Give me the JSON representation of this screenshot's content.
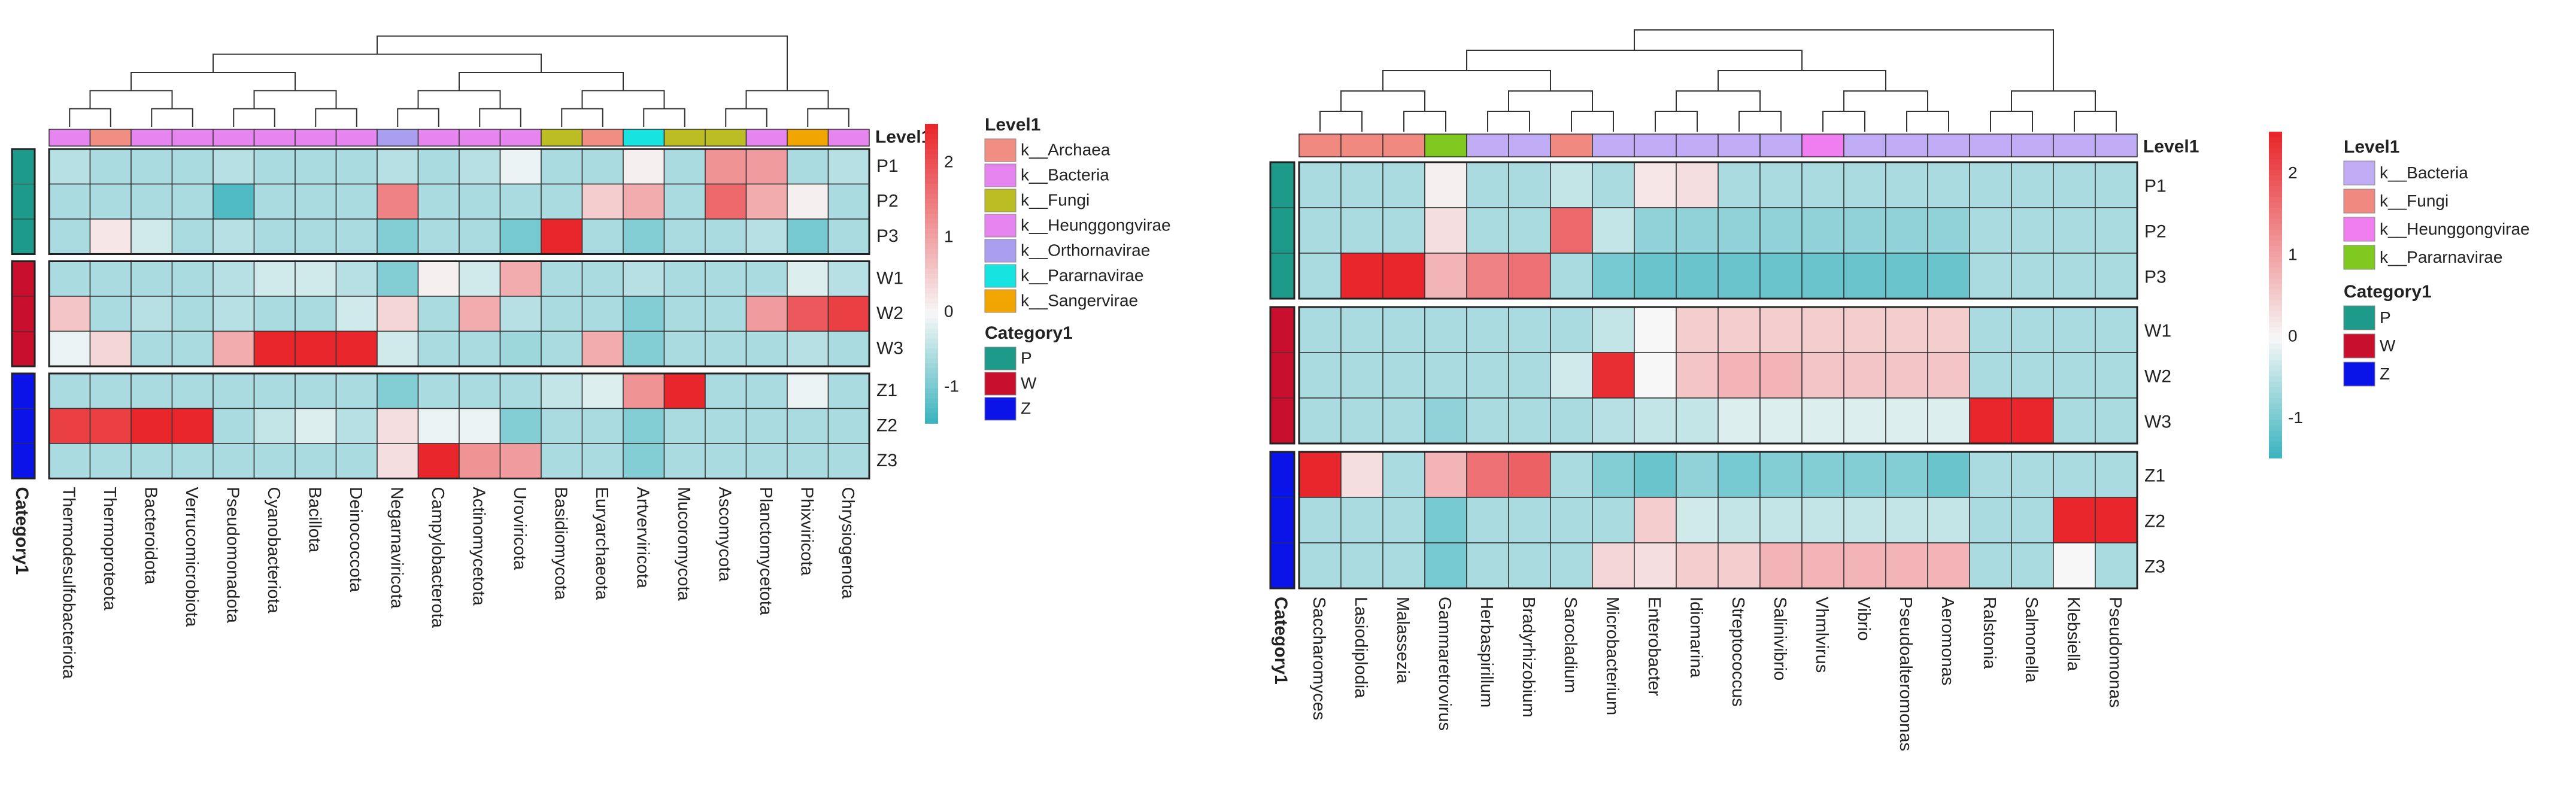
{
  "colors": {
    "high": "#e8262b",
    "mid": "#f7f7f7",
    "low": "#36b2bd",
    "group_P": "#1d9a8a",
    "group_W": "#c8102e",
    "group_Z": "#0a14e8",
    "k_Archaea": "#f08e82",
    "k_Bacteria": "#e684f0",
    "k_Fungi": "#bcbd22",
    "k_Heunggongvirae": "#e684f0",
    "k_Orthornavirae": "#aa9ef0",
    "k_Pararnavirae": "#17e3e0",
    "k_Sangervirae": "#f0a500",
    "k2_Bacteria": "#c0acf4",
    "k2_Fungi": "#f08a80",
    "k2_Heunggongvirae": "#f07ef0",
    "k2_Pararnavirae": "#7ec820"
  },
  "chart_data": [
    {
      "type": "heatmap",
      "title": "",
      "color_range": [
        -1.5,
        2.5
      ],
      "colorbar_ticks": [
        "2",
        "1",
        "0",
        "-1"
      ],
      "colorbar_tick_values": [
        2,
        1,
        0,
        -1
      ],
      "annotation_row_label": "Level1",
      "category_label": "Category1",
      "columns": [
        "Thermodesulfobacteriota",
        "Thermoproteota",
        "Bacteroidota",
        "Verrucomicrobiota",
        "Pseudomonadota",
        "Cyanobacteriota",
        "Bacillota",
        "Deinococcota",
        "Negarnaviricota",
        "Campylobacterota",
        "Actinomycetota",
        "Uroviricota",
        "Basidiomycota",
        "Euryarchaeota",
        "Artverviricota",
        "Mucoromycota",
        "Ascomycota",
        "Planctomycetota",
        "Phixviricota",
        "Chrysiogenota"
      ],
      "column_level1": [
        "k_Bacteria",
        "k_Archaea",
        "k_Bacteria",
        "k_Bacteria",
        "k_Bacteria",
        "k_Bacteria",
        "k_Bacteria",
        "k_Bacteria",
        "k_Orthornavirae",
        "k_Bacteria",
        "k_Bacteria",
        "k_Heunggongvirae",
        "k_Fungi",
        "k_Archaea",
        "k_Pararnavirae",
        "k_Fungi",
        "k_Fungi",
        "k_Bacteria",
        "k_Sangervirae",
        "k_Bacteria"
      ],
      "rows": [
        "P1",
        "P2",
        "P3",
        "W1",
        "W2",
        "W3",
        "Z1",
        "Z2",
        "Z3"
      ],
      "row_groups": [
        "P",
        "P",
        "P",
        "W",
        "W",
        "W",
        "Z",
        "Z",
        "Z"
      ],
      "values": [
        [
          -0.5,
          -0.6,
          -0.6,
          -0.6,
          -0.5,
          -0.6,
          -0.6,
          -0.6,
          -0.5,
          -0.6,
          -0.5,
          -0.1,
          -0.6,
          -0.6,
          0.1,
          -0.6,
          1.2,
          1.1,
          -0.6,
          -0.5
        ],
        [
          -0.6,
          -0.6,
          -0.6,
          -0.6,
          -1.3,
          -0.6,
          -0.6,
          -0.6,
          1.4,
          -0.6,
          -0.6,
          -0.6,
          -0.6,
          0.5,
          0.9,
          -0.6,
          1.7,
          0.9,
          0.1,
          -0.6
        ],
        [
          -0.6,
          0.2,
          -0.3,
          -0.6,
          -0.5,
          -0.6,
          -0.6,
          -0.6,
          -0.9,
          -0.6,
          -0.6,
          -1.0,
          2.5,
          -0.6,
          -0.9,
          -0.6,
          -0.6,
          -0.5,
          -1.0,
          -0.6
        ],
        [
          -0.6,
          -0.6,
          -0.6,
          -0.6,
          -0.5,
          -0.3,
          -0.3,
          -0.5,
          -0.9,
          0.1,
          -0.3,
          0.9,
          -0.6,
          -0.6,
          -0.5,
          -0.6,
          -0.6,
          -0.6,
          -0.2,
          -0.5
        ],
        [
          0.6,
          -0.6,
          -0.5,
          -0.6,
          -0.5,
          -0.6,
          -0.6,
          -0.3,
          0.4,
          -0.6,
          0.9,
          -0.5,
          -0.6,
          -0.6,
          -0.9,
          -0.6,
          -0.6,
          1.1,
          1.9,
          2.2
        ],
        [
          -0.1,
          0.4,
          -0.6,
          -0.6,
          0.9,
          2.5,
          2.5,
          2.5,
          -0.3,
          -0.6,
          -0.6,
          -0.7,
          -0.6,
          0.9,
          -0.9,
          -0.6,
          -0.6,
          -0.6,
          -0.5,
          -0.6
        ],
        [
          -0.6,
          -0.6,
          -0.6,
          -0.6,
          -0.6,
          -0.6,
          -0.6,
          -0.6,
          -0.9,
          -0.6,
          -0.6,
          -0.6,
          -0.4,
          -0.2,
          1.2,
          2.5,
          -0.6,
          -0.6,
          -0.1,
          -0.6
        ],
        [
          2.2,
          2.2,
          2.5,
          2.5,
          -0.6,
          -0.4,
          -0.2,
          -0.5,
          0.3,
          -0.1,
          -0.1,
          -0.9,
          -0.6,
          -0.6,
          -0.9,
          -0.6,
          -0.6,
          -0.6,
          -0.6,
          -0.6
        ],
        [
          -0.6,
          -0.6,
          -0.6,
          -0.6,
          -0.6,
          -0.6,
          -0.6,
          -0.6,
          0.3,
          2.5,
          1.2,
          1.1,
          -0.6,
          -0.6,
          -0.9,
          -0.6,
          -0.6,
          -0.6,
          -0.6,
          -0.6
        ]
      ],
      "level1_legend": [
        "k__Archaea",
        "k__Bacteria",
        "k__Fungi",
        "k__Heunggongvirae",
        "k__Orthornavirae",
        "k__Pararnavirae",
        "k__Sangervirae"
      ],
      "level1_legend_keys": [
        "k_Archaea",
        "k_Bacteria",
        "k_Fungi",
        "k_Heunggongvirae",
        "k_Orthornavirae",
        "k_Pararnavirae",
        "k_Sangervirae"
      ],
      "category_legend": [
        "P",
        "W",
        "Z"
      ]
    },
    {
      "type": "heatmap",
      "title": "",
      "color_range": [
        -1.5,
        2.5
      ],
      "colorbar_ticks": [
        "2",
        "1",
        "0",
        "-1"
      ],
      "colorbar_tick_values": [
        2,
        1,
        0,
        -1
      ],
      "annotation_row_label": "Level1",
      "category_label": "Category1",
      "columns": [
        "Saccharomyces",
        "Lasiodiplodia",
        "Malassezia",
        "Gammaretrovirus",
        "Herbaspirillum",
        "Bradyrhizobium",
        "Sarocladium",
        "Microbacterium",
        "Enterobacter",
        "Idiomarina",
        "Streptococcus",
        "Salinivibrio",
        "Vhmlvirus",
        "Vibrio",
        "Pseudoalteromonas",
        "Aeromonas",
        "Ralstonia",
        "Salmonella",
        "Klebsiella",
        "Pseudomonas"
      ],
      "column_level1": [
        "k2_Fungi",
        "k2_Fungi",
        "k2_Fungi",
        "k2_Pararnavirae",
        "k2_Bacteria",
        "k2_Bacteria",
        "k2_Fungi",
        "k2_Bacteria",
        "k2_Bacteria",
        "k2_Bacteria",
        "k2_Bacteria",
        "k2_Bacteria",
        "k2_Heunggongvirae",
        "k2_Bacteria",
        "k2_Bacteria",
        "k2_Bacteria",
        "k2_Bacteria",
        "k2_Bacteria",
        "k2_Bacteria",
        "k2_Bacteria"
      ],
      "rows": [
        "P1",
        "P2",
        "P3",
        "W1",
        "W2",
        "W3",
        "Z1",
        "Z2",
        "Z3"
      ],
      "row_groups": [
        "P",
        "P",
        "P",
        "W",
        "W",
        "W",
        "Z",
        "Z",
        "Z"
      ],
      "values": [
        [
          -0.6,
          -0.6,
          -0.6,
          0.1,
          -0.6,
          -0.6,
          -0.4,
          -0.6,
          0.2,
          0.3,
          -0.6,
          -0.6,
          -0.6,
          -0.6,
          -0.6,
          -0.6,
          -0.6,
          -0.6,
          -0.6,
          -0.6
        ],
        [
          -0.6,
          -0.6,
          -0.6,
          0.3,
          -0.6,
          -0.6,
          1.7,
          -0.4,
          -0.8,
          -0.8,
          -0.8,
          -0.8,
          -0.8,
          -0.8,
          -0.8,
          -0.8,
          -0.6,
          -0.6,
          -0.6,
          -0.6
        ],
        [
          -0.6,
          2.5,
          2.5,
          0.8,
          1.4,
          1.6,
          -0.6,
          -1.0,
          -1.1,
          -1.1,
          -1.1,
          -1.1,
          -1.1,
          -1.1,
          -1.1,
          -1.1,
          -0.6,
          -0.6,
          -0.6,
          -0.6
        ],
        [
          -0.6,
          -0.6,
          -0.6,
          -0.6,
          -0.6,
          -0.6,
          -0.6,
          -0.4,
          0.0,
          0.5,
          0.5,
          0.5,
          0.5,
          0.5,
          0.5,
          0.5,
          -0.6,
          -0.6,
          -0.6,
          -0.6
        ],
        [
          -0.6,
          -0.6,
          -0.6,
          -0.6,
          -0.6,
          -0.6,
          -0.3,
          2.4,
          0.0,
          0.6,
          0.8,
          0.8,
          0.6,
          0.6,
          0.6,
          0.6,
          -0.6,
          -0.6,
          -0.6,
          -0.6
        ],
        [
          -0.6,
          -0.6,
          -0.6,
          -0.8,
          -0.6,
          -0.6,
          -0.6,
          -0.5,
          -0.4,
          -0.4,
          -0.2,
          -0.2,
          -0.2,
          -0.2,
          -0.2,
          -0.2,
          2.5,
          2.5,
          -0.6,
          -0.6
        ],
        [
          2.5,
          0.3,
          -0.6,
          0.8,
          1.6,
          1.8,
          -0.6,
          -0.9,
          -1.1,
          -0.8,
          -1.0,
          -0.9,
          -0.9,
          -0.9,
          -0.9,
          -1.1,
          -0.6,
          -0.6,
          -0.6,
          -0.6
        ],
        [
          -0.6,
          -0.6,
          -0.6,
          -1.0,
          -0.6,
          -0.6,
          -0.6,
          -0.6,
          0.5,
          -0.3,
          -0.4,
          -0.4,
          -0.4,
          -0.4,
          -0.4,
          -0.4,
          -0.6,
          -0.6,
          2.5,
          2.5
        ],
        [
          -0.6,
          -0.6,
          -0.6,
          -1.0,
          -0.6,
          -0.6,
          -0.6,
          0.4,
          0.3,
          0.5,
          0.5,
          0.8,
          0.8,
          0.8,
          0.8,
          0.8,
          -0.6,
          -0.6,
          0.0,
          -0.6
        ]
      ],
      "level1_legend": [
        "k__Bacteria",
        "k__Fungi",
        "k__Heunggongvirae",
        "k__Pararnavirae"
      ],
      "level1_legend_keys": [
        "k2_Bacteria",
        "k2_Fungi",
        "k2_Heunggongvirae",
        "k2_Pararnavirae"
      ],
      "category_legend": [
        "P",
        "W",
        "Z"
      ]
    }
  ]
}
